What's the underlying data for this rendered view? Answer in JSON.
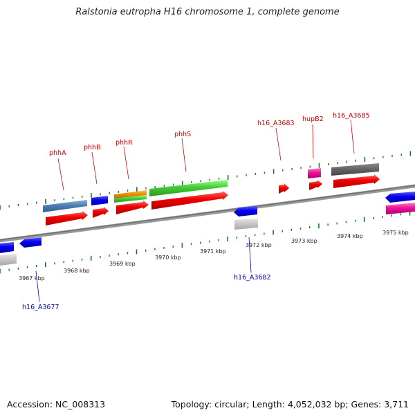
{
  "title": "Ralstonia eutropha H16 chromosome 1, complete genome",
  "accession": "Accession: NC_008313",
  "topology": "Topology: circular; Length: 4,052,032 bp; Genes: 3,711",
  "colors": {
    "top_labels": "#cc0000",
    "bottom_labels": "#0000aa",
    "ticks": "#1a7a1a"
  },
  "scale_labels": [
    "3967 kbp",
    "3968 kbp",
    "3969 kbp",
    "3970 kbp",
    "3971 kbp",
    "3972 kbp",
    "3973 kbp",
    "3974 kbp",
    "3975 kbp"
  ],
  "top_gene_labels": [
    "phhA",
    "phhB",
    "phhR",
    "phhS",
    "h16_A3683",
    "hupB2",
    "h16_A3685"
  ],
  "bottom_gene_labels": [
    "h16_A3677",
    "h16_A3682"
  ]
}
